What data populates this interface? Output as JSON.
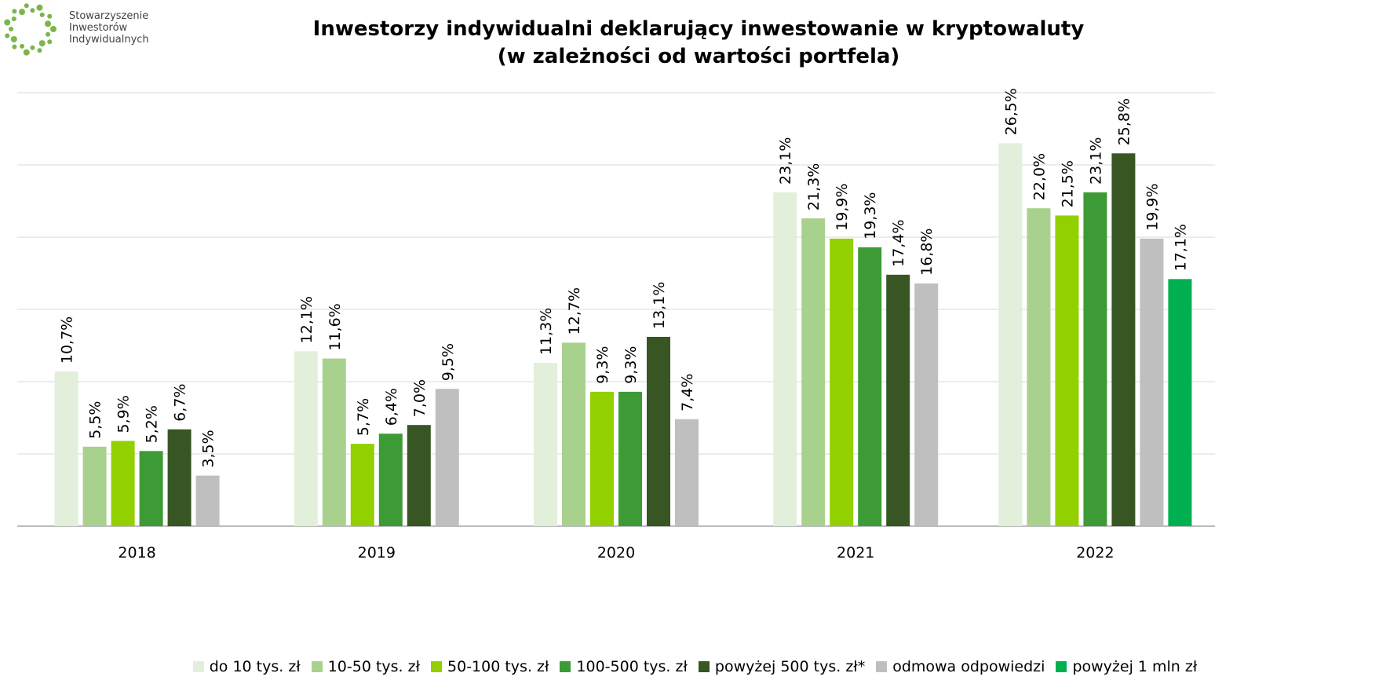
{
  "logo": {
    "lines": [
      "Stowarzyszenie",
      "Inwestorów",
      "Indywidualnych"
    ],
    "icon": "dotted-circle-logo-icon",
    "color": "#7ab648"
  },
  "chart_data": {
    "type": "bar",
    "title": "Inwestorzy indywidualni deklarujący inwestowanie w kryptowaluty",
    "subtitle": "(w zależności od wartości portfela)",
    "categories": [
      "2018",
      "2019",
      "2020",
      "2021",
      "2022"
    ],
    "series": [
      {
        "name": "do 10 tys. zł",
        "color": "#e2efda",
        "values": [
          10.7,
          12.1,
          11.3,
          23.1,
          26.5
        ]
      },
      {
        "name": "10-50 tys. zł",
        "color": "#a9d18e",
        "values": [
          5.5,
          11.6,
          12.7,
          21.3,
          22.0
        ]
      },
      {
        "name": "50-100 tys. zł",
        "color": "#92d000",
        "values": [
          5.9,
          5.7,
          9.3,
          19.9,
          21.5
        ]
      },
      {
        "name": "100-500 tys. zł",
        "color": "#3d9b35",
        "values": [
          5.2,
          6.4,
          9.3,
          19.3,
          23.1
        ]
      },
      {
        "name": "powyżej 500 tys. zł*",
        "color": "#375623",
        "values": [
          6.7,
          7.0,
          13.1,
          17.4,
          25.8
        ]
      },
      {
        "name": "odmowa odpowiedzi",
        "color": "#bfbfbf",
        "values": [
          3.5,
          9.5,
          7.4,
          16.8,
          19.9
        ]
      },
      {
        "name": "powyżej 1 mln zł",
        "color": "#00b050",
        "values": [
          null,
          null,
          null,
          null,
          17.1
        ]
      }
    ],
    "data_labels": [
      [
        "10,7%",
        "12,1%",
        "11,3%",
        "23,1%",
        "26,5%"
      ],
      [
        "5,5%",
        "11,6%",
        "12,7%",
        "21,3%",
        "22,0%"
      ],
      [
        "5,9%",
        "5,7%",
        "9,3%",
        "19,9%",
        "21,5%"
      ],
      [
        "5,2%",
        "6,4%",
        "9,3%",
        "19,3%",
        "23,1%"
      ],
      [
        "6,7%",
        "7,0%",
        "13,1%",
        "17,4%",
        "25,8%"
      ],
      [
        "3,5%",
        "9,5%",
        "7,4%",
        "16,8%",
        "19,9%"
      ],
      [
        null,
        null,
        null,
        null,
        "17,1%"
      ]
    ],
    "ylim": [
      0,
      30
    ],
    "grid": true,
    "legend": "bottom"
  }
}
